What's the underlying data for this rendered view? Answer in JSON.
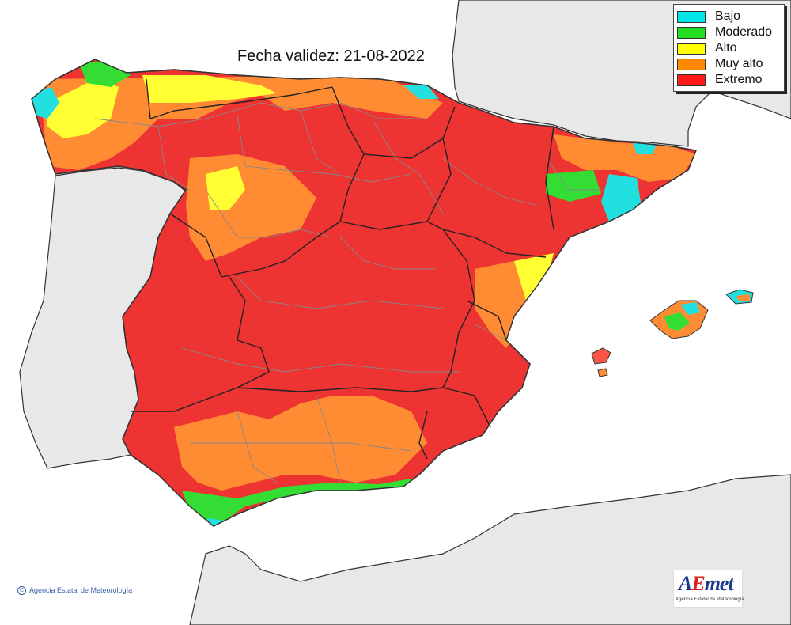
{
  "map": {
    "title": "Fecha validez: 21-08-2022",
    "credit": "Agencia Estatal de Meteorología",
    "credit_symbol": "C",
    "colors": {
      "sea": "#ffffff",
      "land_outside": "#e8e8e8",
      "coast_line": "#333333",
      "border_line": "#222222",
      "province_line": "#888888"
    }
  },
  "legend": {
    "items": [
      {
        "label": "Bajo",
        "color": "#00e5e5"
      },
      {
        "label": "Moderado",
        "color": "#22dd22"
      },
      {
        "label": "Alto",
        "color": "#ffff00"
      },
      {
        "label": "Muy alto",
        "color": "#ff8800"
      },
      {
        "label": "Extremo",
        "color": "#ff1a1a"
      }
    ]
  },
  "logo": {
    "text": "AEmet",
    "subtitle": "Agencia Estatal de Meteorología",
    "colors": {
      "a": "#1a3a8a",
      "e": "#e02020",
      "met": "#1a3a8a"
    }
  }
}
